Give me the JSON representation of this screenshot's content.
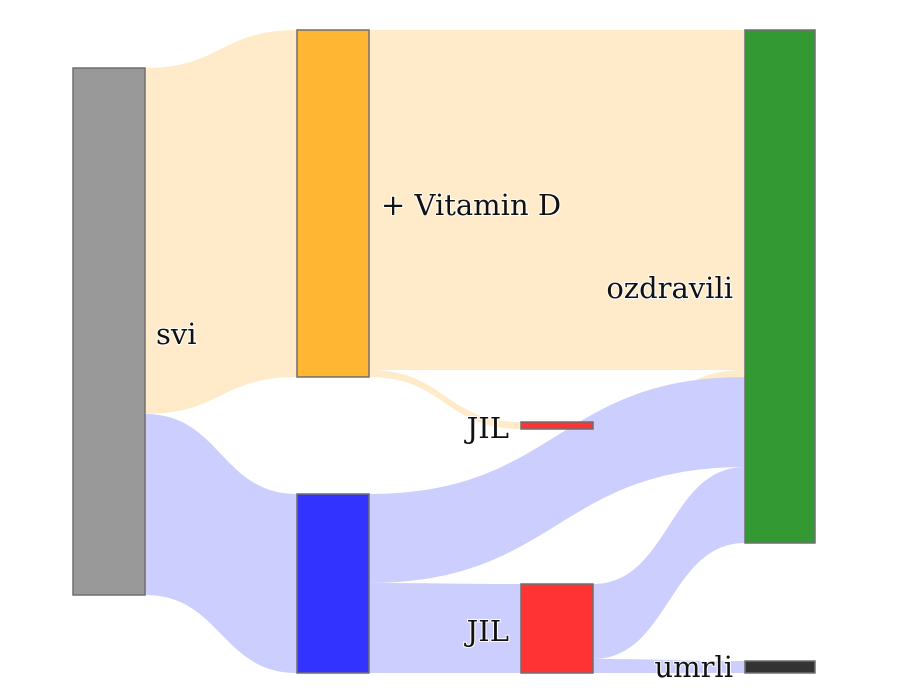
{
  "colors": {
    "svi": "#999999",
    "vitamin_d": "#ffb733",
    "control": "#3333ff",
    "jil": "#ff3333",
    "ozdravili": "#339933",
    "umrli": "#333333",
    "link_vitamin": "#ffebc9",
    "link_control": "#cccffd"
  },
  "nodes": {
    "svi": {
      "label": "svi"
    },
    "vitamin_d": {
      "label": "+ Vitamin D"
    },
    "control": {
      "label": ""
    },
    "jil_vitamin": {
      "label": "JIL"
    },
    "jil_control": {
      "label": "JIL"
    },
    "ozdravili": {
      "label": "ozdravili"
    },
    "umrli": {
      "label": "umrli"
    }
  },
  "chart_data": {
    "type": "sankey",
    "nodes": [
      "svi",
      "+ Vitamin D",
      "",
      "JIL",
      "JIL",
      "ozdravili",
      "umrli"
    ],
    "links": [
      {
        "source": "svi",
        "target": "+ Vitamin D",
        "value": 50
      },
      {
        "source": "svi",
        "target": "control",
        "value": 26
      },
      {
        "source": "+ Vitamin D",
        "target": "ozdravili",
        "value": 49
      },
      {
        "source": "+ Vitamin D",
        "target": "JIL (vitamin)",
        "value": 1
      },
      {
        "source": "JIL (vitamin)",
        "target": "ozdravili",
        "value": 1
      },
      {
        "source": "control",
        "target": "ozdravili",
        "value": 13
      },
      {
        "source": "control",
        "target": "JIL (control)",
        "value": 13
      },
      {
        "source": "JIL (control)",
        "target": "ozdravili",
        "value": 11
      },
      {
        "source": "JIL (control)",
        "target": "umrli",
        "value": 2
      }
    ]
  }
}
